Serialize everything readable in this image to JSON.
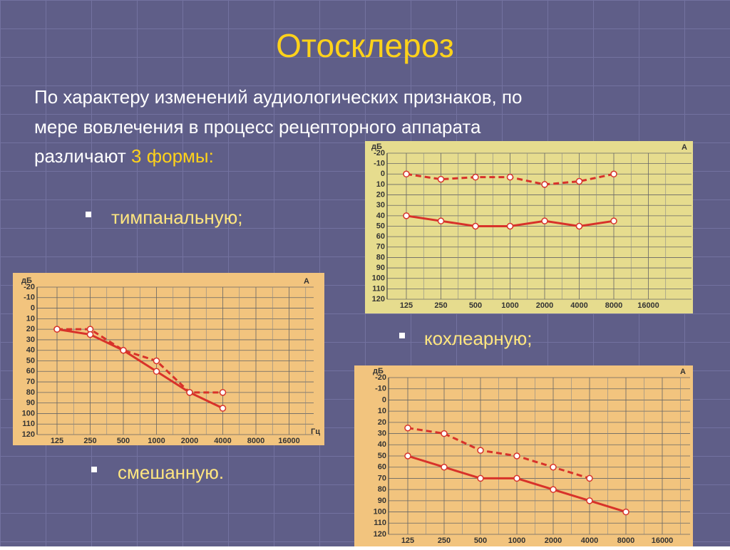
{
  "slide": {
    "title": "Отосклероз",
    "text_lines": [
      "По характеру изменений аудиологических признаков, по",
      "мере вовлечения в процесс рецепторного аппарата",
      "различают"
    ],
    "highlight": "3 формы:",
    "bullets": [
      "тимпанальную;",
      "кохлеарную;",
      "смешанную."
    ]
  },
  "chart_data": [
    {
      "type": "line",
      "y_label": "дБ",
      "corner_label": "А",
      "background": "#e6dc8e",
      "y_inverted": true,
      "categories": [
        "125",
        "250",
        "500",
        "1000",
        "2000",
        "4000",
        "8000",
        "16000"
      ],
      "ylim": [
        -20,
        120
      ],
      "yticks": [
        -20,
        -10,
        0,
        10,
        20,
        30,
        40,
        50,
        60,
        70,
        80,
        90,
        100,
        110,
        120
      ],
      "grid": true,
      "series": [
        {
          "color": "#d8322a",
          "dashed": true,
          "values": [
            0,
            5,
            3,
            3,
            10,
            7,
            0,
            null
          ]
        },
        {
          "color": "#d8322a",
          "dashed": false,
          "values": [
            40,
            45,
            50,
            50,
            45,
            50,
            45,
            null
          ]
        }
      ]
    },
    {
      "type": "line",
      "y_label": "дБ",
      "corner_label": "А",
      "x_label": "Гц",
      "background": "#f2c47e",
      "y_inverted": true,
      "categories": [
        "125",
        "250",
        "500",
        "1000",
        "2000",
        "4000",
        "8000",
        "16000"
      ],
      "ylim": [
        -20,
        120
      ],
      "yticks": [
        -20,
        -10,
        0,
        10,
        20,
        30,
        40,
        50,
        60,
        70,
        80,
        90,
        100,
        110,
        120
      ],
      "grid": true,
      "series": [
        {
          "color": "#d8322a",
          "dashed": true,
          "values": [
            20,
            20,
            40,
            50,
            80,
            80,
            null,
            null
          ]
        },
        {
          "color": "#d8322a",
          "dashed": false,
          "values": [
            20,
            25,
            40,
            60,
            80,
            95,
            null,
            null
          ]
        }
      ]
    },
    {
      "type": "line",
      "y_label": "дБ",
      "corner_label": "А",
      "background": "#f2c47e",
      "y_inverted": true,
      "categories": [
        "125",
        "250",
        "500",
        "1000",
        "2000",
        "4000",
        "8000",
        "16000"
      ],
      "ylim": [
        -20,
        120
      ],
      "yticks": [
        -20,
        -10,
        0,
        10,
        20,
        30,
        40,
        50,
        60,
        70,
        80,
        90,
        100,
        110,
        120
      ],
      "grid": true,
      "series": [
        {
          "color": "#d8322a",
          "dashed": true,
          "values": [
            25,
            30,
            45,
            50,
            60,
            70,
            null,
            null
          ]
        },
        {
          "color": "#d8322a",
          "dashed": false,
          "values": [
            50,
            60,
            70,
            70,
            80,
            90,
            100,
            null
          ]
        }
      ]
    }
  ]
}
